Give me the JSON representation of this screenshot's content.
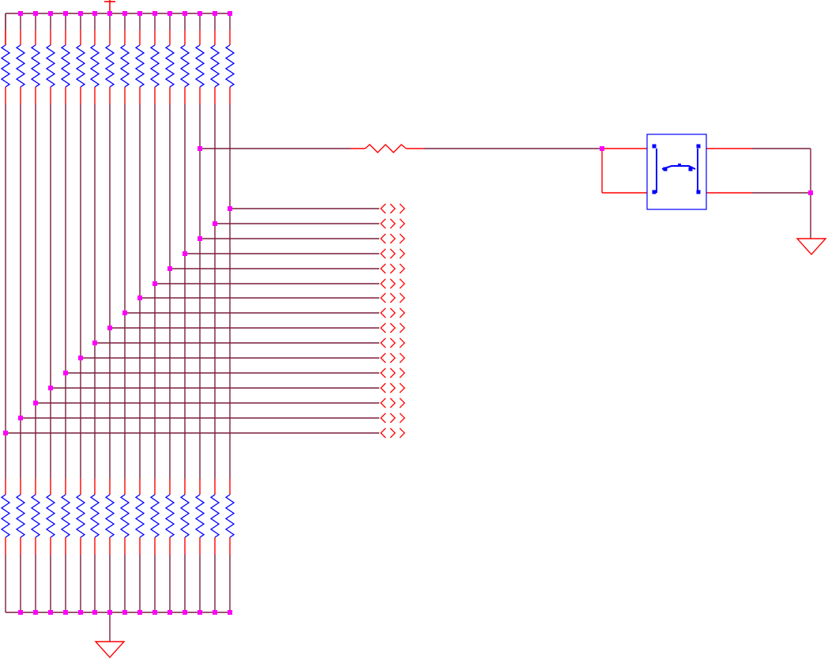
{
  "schematic": {
    "colors": {
      "background": "#ffffff",
      "wire": "#7a1f3d",
      "pin": "#ff0000",
      "component": "#0000ff",
      "junction": "#ff00ff"
    },
    "components": {
      "top_resistor_array": {
        "count": 16,
        "symbol": "resistor"
      },
      "bottom_resistor_array": {
        "count": 16,
        "symbol": "resistor"
      },
      "series_resistor": {
        "symbol": "resistor"
      },
      "connector_array": {
        "count": 16,
        "symbol": "connector-pin"
      },
      "switch": {
        "symbol": "push-button-switch"
      },
      "power_symbol": {
        "symbol": "power-tee"
      },
      "grounds": {
        "count": 2,
        "symbol": "ground-triangle"
      }
    }
  }
}
